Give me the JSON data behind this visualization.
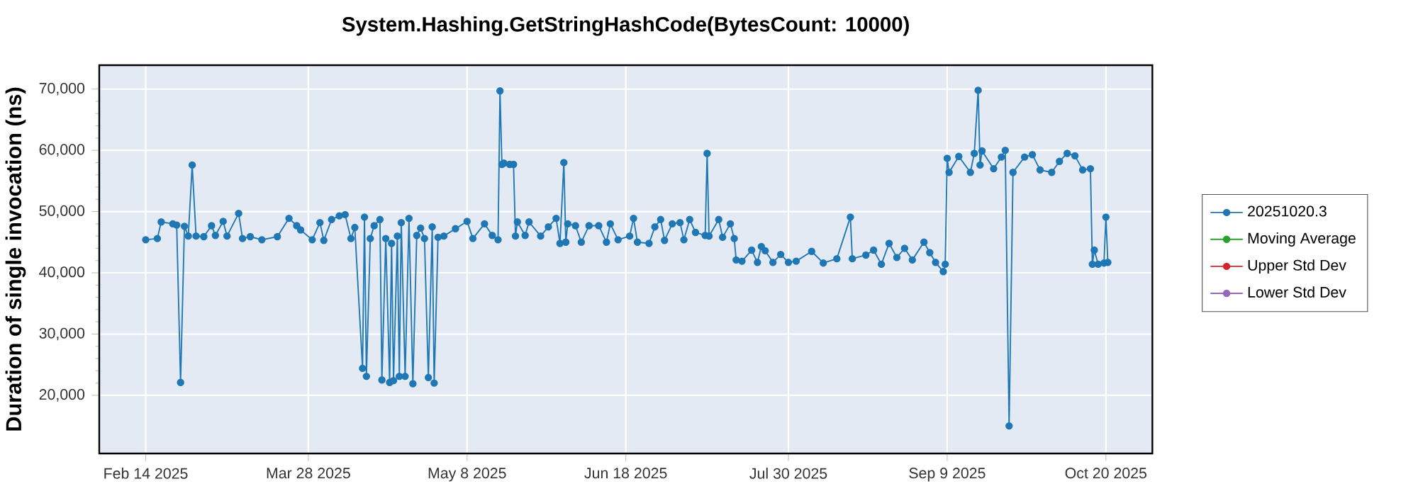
{
  "chart_data": {
    "type": "line",
    "title": "System.Hashing.GetStringHashCode(BytesCount: 10000)",
    "ylabel": "Duration of single invocation (ns)",
    "xlim": [
      "2025-02-02",
      "2025-11-01"
    ],
    "ylim": [
      10500,
      73900
    ],
    "xticks": [
      {
        "value": "2025-02-14",
        "label": "Feb 14 2025"
      },
      {
        "value": "2025-03-28",
        "label": "Mar 28 2025"
      },
      {
        "value": "2025-05-08",
        "label": "May 8 2025"
      },
      {
        "value": "2025-06-18",
        "label": "Jun 18 2025"
      },
      {
        "value": "2025-07-30",
        "label": "Jul 30 2025"
      },
      {
        "value": "2025-09-09",
        "label": "Sep 9 2025"
      },
      {
        "value": "2025-10-20",
        "label": "Oct 20 2025"
      }
    ],
    "yticks": [
      {
        "value": 20000,
        "label": "20,000"
      },
      {
        "value": 30000,
        "label": "30,000"
      },
      {
        "value": 40000,
        "label": "40,000"
      },
      {
        "value": 50000,
        "label": "50,000"
      },
      {
        "value": 60000,
        "label": "60,000"
      },
      {
        "value": 70000,
        "label": "70,000"
      }
    ],
    "grid": true,
    "legend": "right",
    "marker": "circle",
    "line_style": "solid",
    "series": [
      {
        "name": "20251020.3",
        "color": "#1f77b4",
        "x": [
          "2025-02-14",
          "2025-02-17",
          "2025-02-18",
          "2025-02-21",
          "2025-02-22",
          "2025-02-23",
          "2025-02-24",
          "2025-02-25",
          "2025-02-26",
          "2025-02-27",
          "2025-03-01",
          "2025-03-03",
          "2025-03-04",
          "2025-03-06",
          "2025-03-07",
          "2025-03-10",
          "2025-03-11",
          "2025-03-13",
          "2025-03-16",
          "2025-03-20",
          "2025-03-23",
          "2025-03-25",
          "2025-03-26",
          "2025-03-29",
          "2025-03-31",
          "2025-04-01",
          "2025-04-03",
          "2025-04-05",
          "2025-04-06T12:00",
          "2025-04-08",
          "2025-04-09",
          "2025-04-11",
          "2025-04-11T12:00",
          "2025-04-12",
          "2025-04-13",
          "2025-04-14",
          "2025-04-15T12:00",
          "2025-04-16",
          "2025-04-17",
          "2025-04-18",
          "2025-04-18T12:00",
          "2025-04-19",
          "2025-04-20",
          "2025-04-20T12:00",
          "2025-04-21",
          "2025-04-22",
          "2025-04-23",
          "2025-04-24",
          "2025-04-25",
          "2025-04-26",
          "2025-04-27",
          "2025-04-28",
          "2025-04-29",
          "2025-04-29T12:00",
          "2025-04-30T12:00",
          "2025-05-02",
          "2025-05-05",
          "2025-05-08",
          "2025-05-09T12:00",
          "2025-05-12T12:00",
          "2025-05-14T12:00",
          "2025-05-16",
          "2025-05-16T12:00",
          "2025-05-17",
          "2025-05-17T12:00",
          "2025-05-19",
          "2025-05-20",
          "2025-05-20T12:00",
          "2025-05-21",
          "2025-05-23",
          "2025-05-24",
          "2025-05-27",
          "2025-05-29",
          "2025-05-31",
          "2025-06-01",
          "2025-06-02",
          "2025-06-02T12:00",
          "2025-06-03",
          "2025-06-05",
          "2025-06-06T12:00",
          "2025-06-08T12:00",
          "2025-06-11",
          "2025-06-13",
          "2025-06-14",
          "2025-06-16",
          "2025-06-19",
          "2025-06-20",
          "2025-06-21",
          "2025-06-24",
          "2025-06-25T12:00",
          "2025-06-27",
          "2025-06-28",
          "2025-06-30",
          "2025-07-02",
          "2025-07-03",
          "2025-07-04T12:00",
          "2025-07-06",
          "2025-07-08T12:00",
          "2025-07-09",
          "2025-07-09T12:00",
          "2025-07-12",
          "2025-07-13",
          "2025-07-15",
          "2025-07-16",
          "2025-07-16T12:00",
          "2025-07-18",
          "2025-07-20T12:00",
          "2025-07-22",
          "2025-07-23",
          "2025-07-24",
          "2025-07-26",
          "2025-07-28",
          "2025-07-30",
          "2025-08-01",
          "2025-08-05",
          "2025-08-08",
          "2025-08-11T12:00",
          "2025-08-15",
          "2025-08-15T12:00",
          "2025-08-19",
          "2025-08-21",
          "2025-08-23",
          "2025-08-25",
          "2025-08-27",
          "2025-08-29",
          "2025-08-31",
          "2025-09-03",
          "2025-09-04T12:00",
          "2025-09-06",
          "2025-09-08",
          "2025-09-08T12:00",
          "2025-09-09",
          "2025-09-09T12:00",
          "2025-09-12",
          "2025-09-15",
          "2025-09-16",
          "2025-09-17",
          "2025-09-17T12:00",
          "2025-09-18",
          "2025-09-21",
          "2025-09-23",
          "2025-09-24",
          "2025-09-25",
          "2025-09-26",
          "2025-09-29",
          "2025-10-01",
          "2025-10-03",
          "2025-10-06",
          "2025-10-08",
          "2025-10-10",
          "2025-10-12",
          "2025-10-14",
          "2025-10-16",
          "2025-10-16T12:00",
          "2025-10-17",
          "2025-10-18",
          "2025-10-19T12:00",
          "2025-10-20",
          "2025-10-20T12:00"
        ],
        "values": [
          45400,
          45600,
          48300,
          48000,
          47800,
          22100,
          47600,
          46000,
          57600,
          46000,
          45900,
          47700,
          46100,
          48400,
          46000,
          49700,
          45600,
          45900,
          45400,
          45900,
          48900,
          47700,
          47000,
          45400,
          48200,
          45300,
          48700,
          49300,
          49500,
          45600,
          47400,
          24400,
          49100,
          23100,
          45600,
          47700,
          48700,
          22500,
          45600,
          22100,
          44800,
          22400,
          46000,
          23100,
          48200,
          23100,
          48900,
          21900,
          46100,
          47300,
          45600,
          22900,
          47500,
          22000,
          45800,
          46000,
          47200,
          48400,
          45600,
          48000,
          46100,
          45400,
          69700,
          57700,
          57900,
          57700,
          57700,
          46000,
          48300,
          46100,
          48300,
          46000,
          47500,
          48900,
          44800,
          58000,
          45000,
          48000,
          47700,
          45000,
          47700,
          47700,
          45000,
          48000,
          45400,
          46000,
          48900,
          45000,
          44800,
          47500,
          48700,
          45300,
          48000,
          48200,
          45400,
          48700,
          46600,
          46100,
          59500,
          46000,
          48700,
          45800,
          48000,
          45600,
          42100,
          41900,
          43700,
          41700,
          44300,
          43600,
          41700,
          43000,
          41700,
          41900,
          43500,
          41600,
          42300,
          49100,
          42300,
          42900,
          43700,
          41400,
          44800,
          42500,
          44000,
          42100,
          45000,
          43300,
          41700,
          40200,
          41400,
          58700,
          56400,
          59000,
          56400,
          59500,
          69800,
          57600,
          59900,
          57000,
          58900,
          60000,
          15000,
          56400,
          58900,
          59300,
          56800,
          56400,
          58200,
          59500,
          59100,
          56800,
          57000,
          41400,
          43700,
          41400,
          41600,
          49100,
          41700
        ]
      },
      {
        "name": "Moving Average",
        "color": "#2ca02c"
      },
      {
        "name": "Upper Std Dev",
        "color": "#d62728"
      },
      {
        "name": "Lower Std Dev",
        "color": "#9467bd"
      }
    ]
  }
}
